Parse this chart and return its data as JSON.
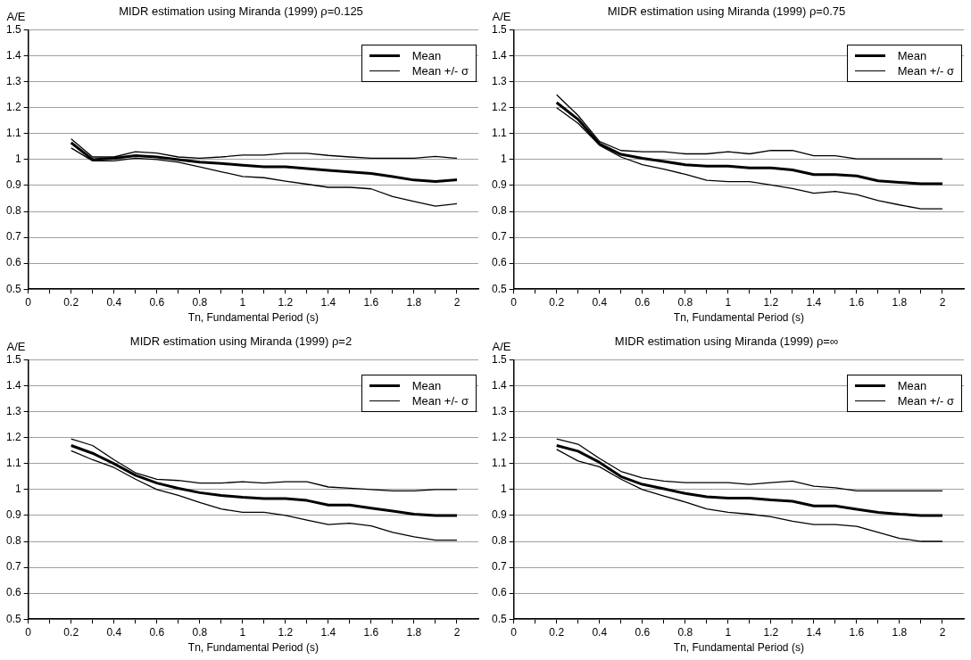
{
  "chart_data": [
    {
      "type": "line",
      "title": "MIDR estimation using Miranda (1999) ρ=0.125",
      "xlabel": "Tn, Fundamental Period (s)",
      "ylabel": "A/E",
      "x": [
        0.2,
        0.3,
        0.4,
        0.5,
        0.6,
        0.7,
        0.8,
        0.9,
        1.0,
        1.1,
        1.2,
        1.3,
        1.4,
        1.5,
        1.6,
        1.7,
        1.8,
        1.9,
        2.0
      ],
      "xlim": [
        0,
        2.1
      ],
      "xticks": [
        0,
        {
          "value": 0.1,
          "label": null
        },
        0.2,
        {
          "value": 0.3,
          "label": null
        },
        0.4,
        {
          "value": 0.5,
          "label": null
        },
        0.6,
        {
          "value": 0.7,
          "label": null
        },
        0.8,
        {
          "value": 0.9,
          "label": null
        },
        1,
        {
          "value": 1.1,
          "label": null
        },
        1.2,
        {
          "value": 1.3,
          "label": null
        },
        1.4,
        {
          "value": 1.5,
          "label": null
        },
        1.6,
        {
          "value": 1.7,
          "label": null
        },
        1.8,
        {
          "value": 1.9,
          "label": null
        },
        2
      ],
      "ylim": [
        0.5,
        1.5
      ],
      "yticks": [
        0.5,
        0.6,
        0.7,
        0.8,
        0.9,
        1,
        1.1,
        1.2,
        1.3,
        1.4,
        1.5
      ],
      "grid": "y",
      "legend": "top right",
      "marker": "none",
      "series": [
        {
          "name": "Mean",
          "color": "#000000",
          "values": [
            1.065,
            1.0,
            1.005,
            1.015,
            1.01,
            1.0,
            0.99,
            0.985,
            0.978,
            0.972,
            0.972,
            0.965,
            0.958,
            0.952,
            0.946,
            0.934,
            0.921,
            0.915,
            0.922
          ]
        },
        {
          "name": "Mean +/- σ",
          "color": "#000000",
          "values": [
            1.08,
            1.01,
            1.01,
            1.03,
            1.025,
            1.01,
            1.005,
            1.01,
            1.017,
            1.017,
            1.024,
            1.024,
            1.016,
            1.01,
            1.005,
            1.005,
            1.005,
            1.012,
            1.005
          ]
        },
        {
          "color": "#000000",
          "values": [
            1.045,
            0.995,
            0.995,
            1.005,
            1.0,
            0.99,
            0.972,
            0.953,
            0.935,
            0.93,
            0.917,
            0.905,
            0.893,
            0.893,
            0.887,
            0.857,
            0.838,
            0.82,
            0.83
          ]
        }
      ]
    },
    {
      "type": "line",
      "title": "MIDR estimation using Miranda (1999) ρ=0.75",
      "xlabel": "Tn, Fundamental Period (s)",
      "ylabel": "A/E",
      "x": [
        0.2,
        0.3,
        0.4,
        0.5,
        0.6,
        0.7,
        0.8,
        0.9,
        1.0,
        1.1,
        1.2,
        1.3,
        1.4,
        1.5,
        1.6,
        1.7,
        1.8,
        1.9,
        2.0
      ],
      "xlim": [
        0,
        2.1
      ],
      "xticks": [
        0,
        {
          "value": 0.1,
          "label": null
        },
        0.2,
        {
          "value": 0.3,
          "label": null
        },
        0.4,
        {
          "value": 0.5,
          "label": null
        },
        0.6,
        {
          "value": 0.7,
          "label": null
        },
        0.8,
        {
          "value": 0.9,
          "label": null
        },
        1,
        {
          "value": 1.1,
          "label": null
        },
        1.2,
        {
          "value": 1.3,
          "label": null
        },
        1.4,
        {
          "value": 1.5,
          "label": null
        },
        1.6,
        {
          "value": 1.7,
          "label": null
        },
        1.8,
        {
          "value": 1.9,
          "label": null
        },
        2
      ],
      "ylim": [
        0.5,
        1.5
      ],
      "yticks": [
        0.5,
        0.6,
        0.7,
        0.8,
        0.9,
        1,
        1.1,
        1.2,
        1.3,
        1.4,
        1.5
      ],
      "grid": "y",
      "legend": "top right",
      "marker": "none",
      "series": [
        {
          "name": "Mean",
          "color": "#000000",
          "values": [
            1.22,
            1.155,
            1.06,
            1.02,
            1.005,
            0.993,
            0.98,
            0.975,
            0.975,
            0.968,
            0.968,
            0.96,
            0.942,
            0.942,
            0.937,
            0.918,
            0.912,
            0.907,
            0.907
          ]
        },
        {
          "name": "Mean +/- σ",
          "color": "#000000",
          "values": [
            1.25,
            1.17,
            1.07,
            1.035,
            1.03,
            1.03,
            1.022,
            1.022,
            1.03,
            1.022,
            1.035,
            1.035,
            1.015,
            1.015,
            1.003,
            1.003,
            1.003,
            1.003,
            1.003
          ]
        },
        {
          "color": "#000000",
          "values": [
            1.2,
            1.14,
            1.055,
            1.01,
            0.98,
            0.963,
            0.943,
            0.92,
            0.915,
            0.915,
            0.902,
            0.888,
            0.87,
            0.877,
            0.865,
            0.842,
            0.825,
            0.81,
            0.81
          ]
        }
      ]
    },
    {
      "type": "line",
      "title": "MIDR estimation using Miranda (1999) ρ=2",
      "xlabel": "Tn, Fundamental Period (s)",
      "ylabel": "A/E",
      "x": [
        0.2,
        0.3,
        0.4,
        0.5,
        0.6,
        0.7,
        0.8,
        0.9,
        1.0,
        1.1,
        1.2,
        1.3,
        1.4,
        1.5,
        1.6,
        1.7,
        1.8,
        1.9,
        2.0
      ],
      "xlim": [
        0,
        2.1
      ],
      "xticks": [
        0,
        {
          "value": 0.1,
          "label": null
        },
        0.2,
        {
          "value": 0.3,
          "label": null
        },
        0.4,
        {
          "value": 0.5,
          "label": null
        },
        0.6,
        {
          "value": 0.7,
          "label": null
        },
        0.8,
        {
          "value": 0.9,
          "label": null
        },
        1,
        {
          "value": 1.1,
          "label": null
        },
        1.2,
        {
          "value": 1.3,
          "label": null
        },
        1.4,
        {
          "value": 1.5,
          "label": null
        },
        1.6,
        {
          "value": 1.7,
          "label": null
        },
        1.8,
        {
          "value": 1.9,
          "label": null
        },
        2
      ],
      "ylim": [
        0.5,
        1.5
      ],
      "yticks": [
        0.5,
        0.6,
        0.7,
        0.8,
        0.9,
        1,
        1.1,
        1.2,
        1.3,
        1.4,
        1.5
      ],
      "grid": "y",
      "legend": "top right",
      "marker": "none",
      "series": [
        {
          "name": "Mean",
          "color": "#000000",
          "values": [
            1.17,
            1.14,
            1.1,
            1.055,
            1.025,
            1.005,
            0.988,
            0.977,
            0.97,
            0.965,
            0.965,
            0.958,
            0.94,
            0.94,
            0.928,
            0.917,
            0.905,
            0.9,
            0.9
          ]
        },
        {
          "name": "Mean +/- σ",
          "color": "#000000",
          "values": [
            1.195,
            1.17,
            1.115,
            1.065,
            1.04,
            1.035,
            1.025,
            1.025,
            1.03,
            1.025,
            1.03,
            1.03,
            1.01,
            1.005,
            1.0,
            0.995,
            0.995,
            1.0,
            1.0
          ]
        },
        {
          "color": "#000000",
          "values": [
            1.15,
            1.115,
            1.085,
            1.04,
            1.0,
            0.978,
            0.95,
            0.925,
            0.912,
            0.912,
            0.9,
            0.882,
            0.865,
            0.87,
            0.86,
            0.835,
            0.818,
            0.805,
            0.805
          ]
        }
      ]
    },
    {
      "type": "line",
      "title": "MIDR estimation using Miranda (1999) ρ=∞",
      "xlabel": "Tn, Fundamental Period (s)",
      "ylabel": "A/E",
      "x": [
        0.2,
        0.3,
        0.4,
        0.5,
        0.6,
        0.7,
        0.8,
        0.9,
        1.0,
        1.1,
        1.2,
        1.3,
        1.4,
        1.5,
        1.6,
        1.7,
        1.8,
        1.9,
        2.0
      ],
      "xlim": [
        0,
        2.1
      ],
      "xticks": [
        0,
        {
          "value": 0.1,
          "label": null
        },
        0.2,
        {
          "value": 0.3,
          "label": null
        },
        0.4,
        {
          "value": 0.5,
          "label": null
        },
        0.6,
        {
          "value": 0.7,
          "label": null
        },
        0.8,
        {
          "value": 0.9,
          "label": null
        },
        1,
        {
          "value": 1.1,
          "label": null
        },
        1.2,
        {
          "value": 1.3,
          "label": null
        },
        1.4,
        {
          "value": 1.5,
          "label": null
        },
        1.6,
        {
          "value": 1.7,
          "label": null
        },
        1.8,
        {
          "value": 1.9,
          "label": null
        },
        2
      ],
      "ylim": [
        0.5,
        1.5
      ],
      "yticks": [
        0.5,
        0.6,
        0.7,
        0.8,
        0.9,
        1,
        1.1,
        1.2,
        1.3,
        1.4,
        1.5
      ],
      "grid": "y",
      "legend": "top right",
      "marker": "none",
      "series": [
        {
          "name": "Mean",
          "color": "#000000",
          "values": [
            1.17,
            1.148,
            1.105,
            1.05,
            1.02,
            1.003,
            0.985,
            0.972,
            0.967,
            0.967,
            0.96,
            0.955,
            0.937,
            0.937,
            0.924,
            0.912,
            0.905,
            0.9,
            0.9
          ]
        },
        {
          "name": "Mean +/- σ",
          "color": "#000000",
          "values": [
            1.195,
            1.175,
            1.12,
            1.07,
            1.045,
            1.033,
            1.027,
            1.027,
            1.027,
            1.02,
            1.027,
            1.033,
            1.013,
            1.007,
            0.995,
            0.995,
            0.995,
            0.995,
            0.995
          ]
        },
        {
          "color": "#000000",
          "values": [
            1.155,
            1.11,
            1.088,
            1.04,
            1.0,
            0.975,
            0.952,
            0.925,
            0.912,
            0.905,
            0.895,
            0.878,
            0.865,
            0.865,
            0.858,
            0.835,
            0.812,
            0.8,
            0.8
          ]
        }
      ]
    }
  ]
}
